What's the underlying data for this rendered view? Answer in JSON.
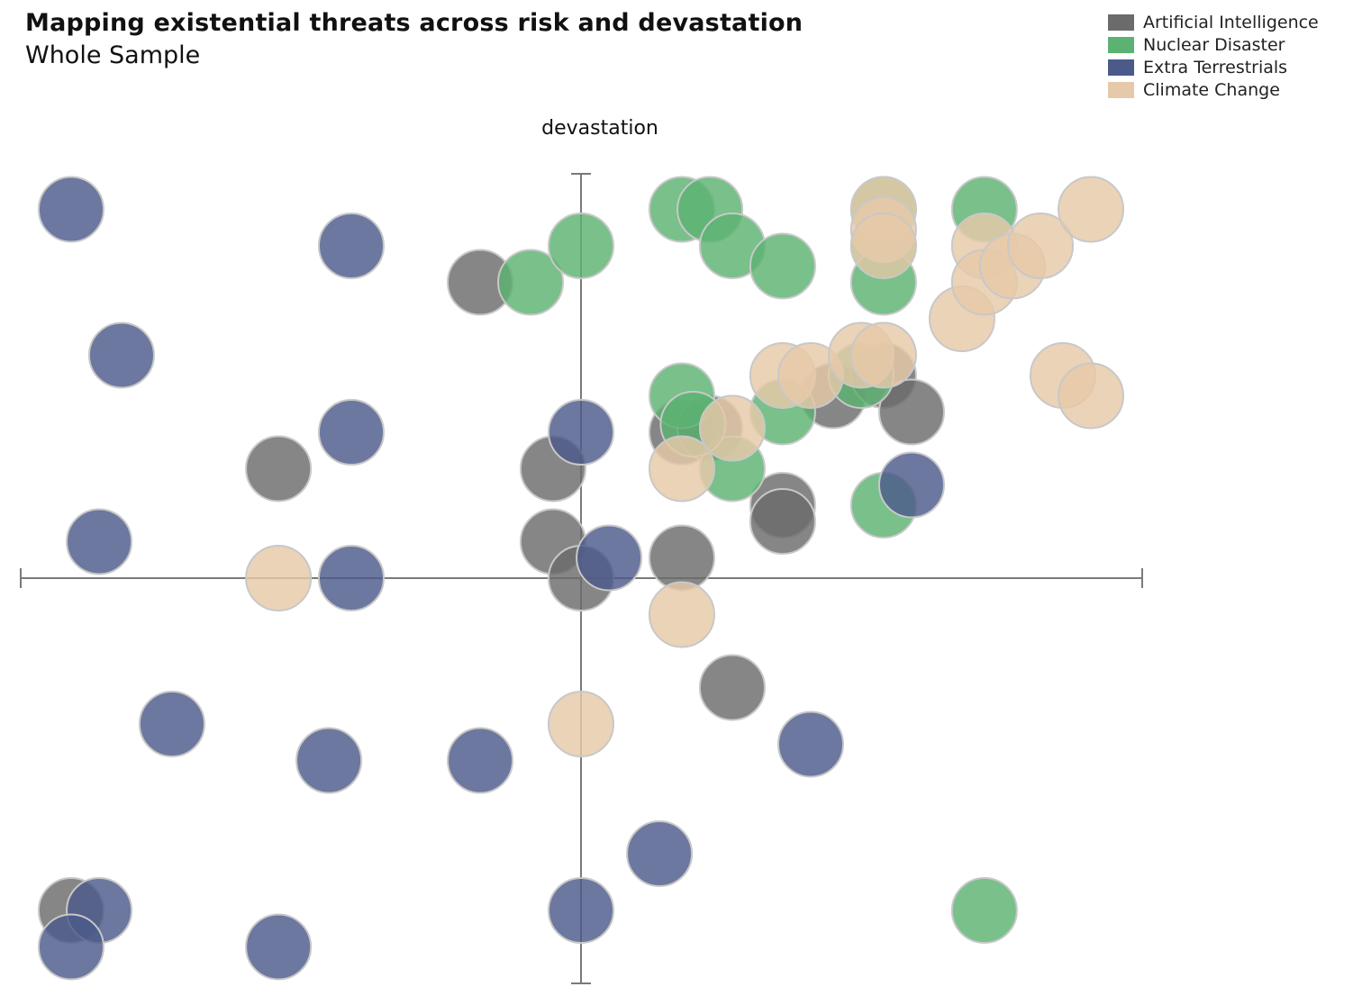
{
  "title": "Mapping existential threats across risk and devastation",
  "subtitle": "Whole Sample",
  "chart_data": {
    "type": "scatter",
    "ylabel": "devastation",
    "xlabel": "",
    "xlim": [
      -1,
      1
    ],
    "ylim": [
      -1,
      1
    ],
    "grid": false,
    "legend_position": "top-right",
    "series": [
      {
        "name": "Artificial Intelligence",
        "color": "#6b6b6b",
        "points": [
          [
            -0.18,
            0.73
          ],
          [
            -0.54,
            0.27
          ],
          [
            -0.05,
            0.27
          ],
          [
            -0.05,
            0.09
          ],
          [
            0,
            0
          ],
          [
            0.18,
            0.05
          ],
          [
            0.27,
            -0.27
          ],
          [
            0.36,
            0.18
          ],
          [
            0.36,
            0.14
          ],
          [
            0.45,
            0.45
          ],
          [
            0.54,
            0.5
          ],
          [
            0.59,
            0.41
          ],
          [
            -0.91,
            -0.82
          ],
          [
            0.18,
            0.36
          ],
          [
            0.23,
            0.37
          ]
        ]
      },
      {
        "name": "Nuclear Disaster",
        "color": "#5bb272",
        "points": [
          [
            -0.09,
            0.73
          ],
          [
            0,
            0.82
          ],
          [
            0.18,
            0.91
          ],
          [
            0.23,
            0.91
          ],
          [
            0.27,
            0.82
          ],
          [
            0.36,
            0.77
          ],
          [
            0.54,
            0.82
          ],
          [
            0.54,
            0.73
          ],
          [
            0.54,
            0.91
          ],
          [
            0.18,
            0.45
          ],
          [
            0.27,
            0.27
          ],
          [
            0.36,
            0.41
          ],
          [
            0.5,
            0.5
          ],
          [
            0.54,
            0.18
          ],
          [
            0.72,
            0.91
          ],
          [
            0.72,
            -0.82
          ],
          [
            0.2,
            0.38
          ]
        ]
      },
      {
        "name": "Extra Terrestrials",
        "color": "#4c5a8a",
        "points": [
          [
            -0.91,
            0.91
          ],
          [
            -0.41,
            0.82
          ],
          [
            -0.82,
            0.55
          ],
          [
            -0.41,
            0.36
          ],
          [
            0,
            0.36
          ],
          [
            -0.86,
            0.09
          ],
          [
            -0.41,
            0
          ],
          [
            0.05,
            0.05
          ],
          [
            0.59,
            0.23
          ],
          [
            -0.73,
            -0.36
          ],
          [
            -0.45,
            -0.45
          ],
          [
            -0.18,
            -0.45
          ],
          [
            0.41,
            -0.41
          ],
          [
            0.14,
            -0.68
          ],
          [
            0,
            -0.82
          ],
          [
            -0.86,
            -0.82
          ],
          [
            -0.91,
            -0.91
          ],
          [
            -0.54,
            -0.91
          ]
        ]
      },
      {
        "name": "Climate Change",
        "color": "#e6c9a8",
        "points": [
          [
            -0.54,
            0
          ],
          [
            0.18,
            -0.09
          ],
          [
            0,
            -0.36
          ],
          [
            0.18,
            0.27
          ],
          [
            0.27,
            0.37
          ],
          [
            0.36,
            0.5
          ],
          [
            0.41,
            0.5
          ],
          [
            0.5,
            0.55
          ],
          [
            0.54,
            0.55
          ],
          [
            0.54,
            0.91
          ],
          [
            0.54,
            0.86
          ],
          [
            0.54,
            0.82
          ],
          [
            0.68,
            0.64
          ],
          [
            0.72,
            0.82
          ],
          [
            0.72,
            0.73
          ],
          [
            0.77,
            0.77
          ],
          [
            0.82,
            0.82
          ],
          [
            0.86,
            0.5
          ],
          [
            0.91,
            0.45
          ],
          [
            0.91,
            0.91
          ]
        ]
      }
    ]
  }
}
